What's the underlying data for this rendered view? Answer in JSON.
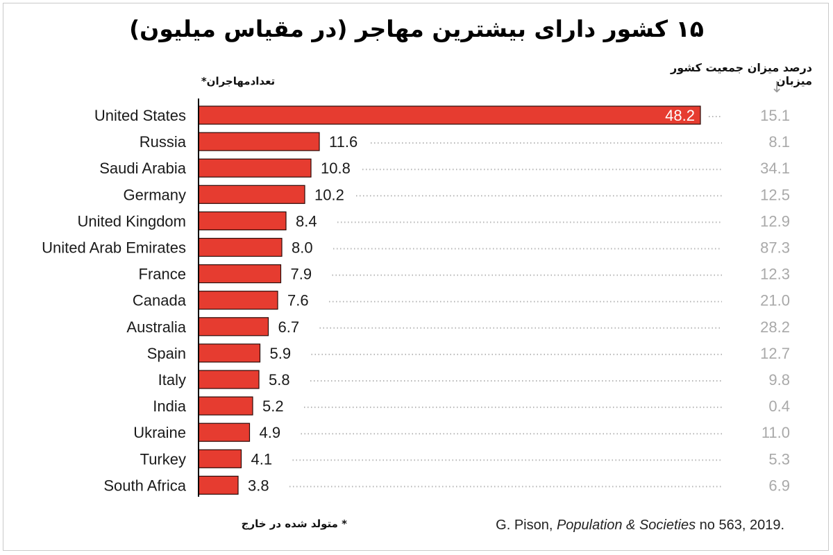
{
  "colors": {
    "bar": "#e63c30",
    "bar_stroke": "#2a0b08",
    "dots": "#b5b5b5",
    "percent_text": "#a9a9a9"
  },
  "chart_data": {
    "type": "bar",
    "orientation": "horizontal",
    "title": "۱۵ کشور دارای بیشترین مهاجر (در مقیاس میلیون)",
    "value_header": "تعدادمهاجران*",
    "percent_header": "درصد میزان جمعیت کشور میزبان",
    "percent_arrow": "↓",
    "footnote": "* متولد شده در خارج",
    "source": "G. Pison, Population & Societies no 563, 2019.",
    "categories": [
      "United States",
      "Russia",
      "Saudi Arabia",
      "Germany",
      "United Kingdom",
      "United Arab Emirates",
      "France",
      "Canada",
      "Australia",
      "Spain",
      "Italy",
      "India",
      "Ukraine",
      "Turkey",
      "South Africa"
    ],
    "values": [
      48.2,
      11.6,
      10.8,
      10.2,
      8.4,
      8.0,
      7.9,
      7.6,
      6.7,
      5.9,
      5.8,
      5.2,
      4.9,
      4.1,
      3.8
    ],
    "value_labels": [
      "48.2",
      "11.6",
      "10.8",
      "10.2",
      "8.4",
      "8.0",
      "7.9",
      "7.6",
      "6.7",
      "5.9",
      "5.8",
      "5.2",
      "4.9",
      "4.1",
      "3.8"
    ],
    "percent_of_host_population": [
      "15.1",
      "8.1",
      "34.1",
      "12.5",
      "12.9",
      "87.3",
      "12.3",
      "21.0",
      "28.2",
      "12.7",
      "9.8",
      "0.4",
      "11.0",
      "5.3",
      "6.9"
    ],
    "xlim": [
      0,
      48.2
    ]
  }
}
